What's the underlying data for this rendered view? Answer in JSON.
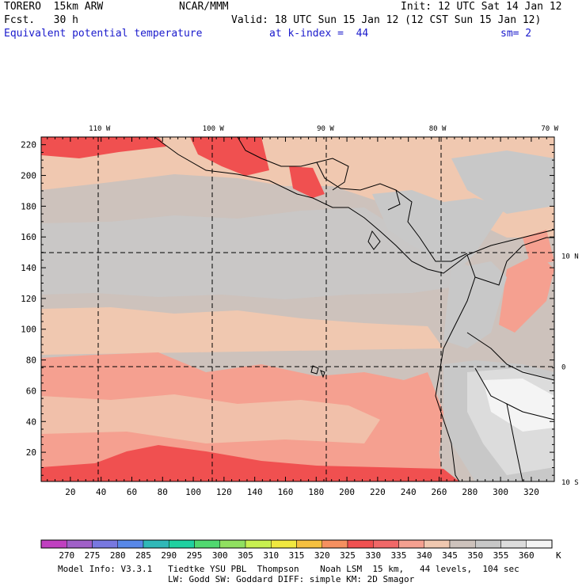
{
  "header": {
    "model": "TORERO  15km ARW",
    "org": "NCAR/MMM",
    "init": "Init: 12 UTC Sat 14 Jan 12",
    "fcst": "Fcst.   30 h",
    "valid": "Valid: 18 UTC Sun 15 Jan 12 (12 CST Sun 15 Jan 12)",
    "field": "Equivalent potential temperature",
    "level": "at k-index =  44",
    "smooth": "sm= 2"
  },
  "chart_data": {
    "type": "heatmap",
    "title": "Equivalent potential temperature",
    "units": "K",
    "x_grid_ticks": [
      20,
      40,
      60,
      80,
      100,
      120,
      140,
      160,
      180,
      200,
      220,
      240,
      260,
      280,
      300,
      320
    ],
    "y_grid_ticks": [
      20,
      40,
      60,
      80,
      100,
      120,
      140,
      160,
      180,
      200,
      220
    ],
    "xlim": [
      1,
      335
    ],
    "ylim": [
      1,
      225
    ],
    "lon_labels": [
      {
        "label": "110 W",
        "x": 39
      },
      {
        "label": "100 W",
        "x": 113
      },
      {
        "label": "90 W",
        "x": 186
      },
      {
        "label": "80 W",
        "x": 259
      },
      {
        "label": "70 W",
        "x": 332
      }
    ],
    "lat_labels": [
      {
        "label": "10 N",
        "y": 148
      },
      {
        "label": "0",
        "y": 76
      },
      {
        "label": "10 S",
        "y": 1
      }
    ],
    "colorbar": {
      "labels": [
        "270",
        "275",
        "280",
        "285",
        "290",
        "295",
        "300",
        "305",
        "310",
        "315",
        "320",
        "325",
        "330",
        "335",
        "340",
        "345",
        "350",
        "355",
        "360"
      ],
      "unit": "K",
      "colors": [
        "#c040c0",
        "#a060c8",
        "#7878e0",
        "#5888e8",
        "#30b8b8",
        "#20d0a0",
        "#50d870",
        "#90e060",
        "#c8f050",
        "#f0e840",
        "#f5c040",
        "#f59060",
        "#f05050",
        "#f06868",
        "#f5a090",
        "#f0c8b0",
        "#cdc2bc",
        "#c8c8c8",
        "#dcdcdc",
        "#f4f4f4"
      ]
    }
  },
  "footer": {
    "line1": "Model Info: V3.3.1   Tiedtke YSU PBL  Thompson    Noah LSM  15 km,   44 levels,  104 sec",
    "line2": "LW: Godd SW: Goddard DIFF: simple KM: 2D Smagor"
  },
  "colors": {
    "hot": "#f05050",
    "warm": "#f5a090",
    "mild": "#f0c8b0",
    "taupe": "#cdc2bc",
    "grey": "#c8c8c8",
    "lightgrey": "#dcdcdc",
    "white": "#f4f4f4"
  }
}
